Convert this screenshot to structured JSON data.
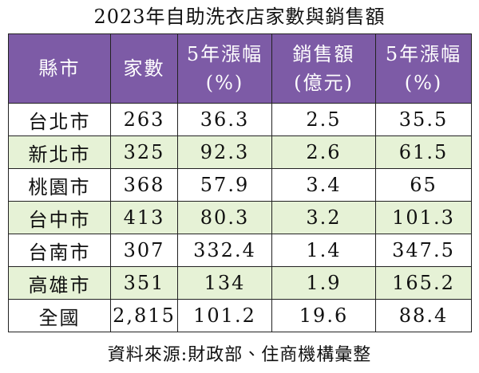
{
  "title": "2023年自助洗衣店家數與銷售額",
  "table": {
    "header": [
      [
        "縣市"
      ],
      [
        "家數"
      ],
      [
        "5年漲幅",
        "(%)"
      ],
      [
        "銷售額",
        "(億元)"
      ],
      [
        "5年漲幅",
        "(%)"
      ]
    ],
    "rows": [
      [
        "台北市",
        "263",
        "36.3",
        "2.5",
        "35.5"
      ],
      [
        "新北市",
        "325",
        "92.3",
        "2.6",
        "61.5"
      ],
      [
        "桃園市",
        "368",
        "57.9",
        "3.4",
        "65"
      ],
      [
        "台中市",
        "413",
        "80.3",
        "3.2",
        "101.3"
      ],
      [
        "台南市",
        "307",
        "332.4",
        "1.4",
        "347.5"
      ],
      [
        "高雄市",
        "351",
        "134",
        "1.9",
        "165.2"
      ],
      [
        "全國",
        "2,815",
        "101.2",
        "19.6",
        "88.4"
      ]
    ]
  },
  "source": "資料來源:財政部、住商機構彙整"
}
